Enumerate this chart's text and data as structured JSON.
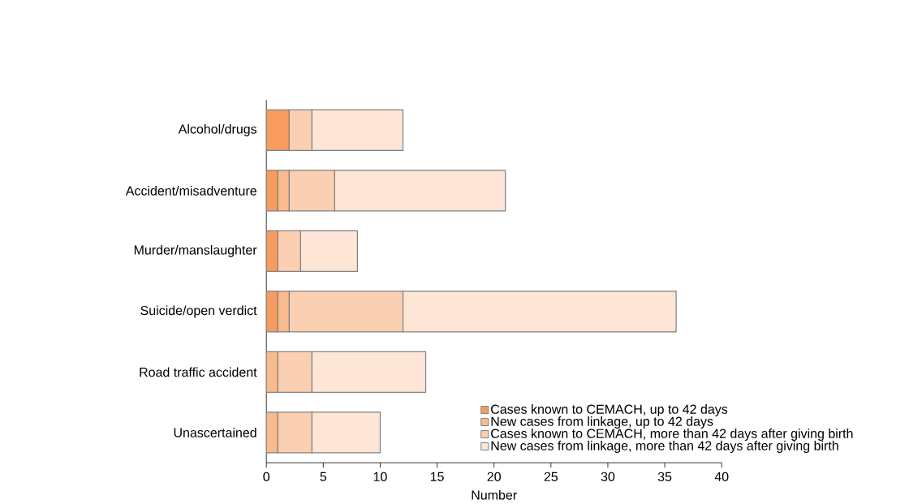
{
  "chart_data": {
    "type": "bar",
    "orientation": "horizontal",
    "stacked": true,
    "categories": [
      "Alcohol/drugs",
      "Accident/misadventure",
      "Murder/manslaughter",
      "Suicide/open verdict",
      "Road traffic accident",
      "Unascertained"
    ],
    "series": [
      {
        "name": "Cases known to CEMACH, up to 42 days",
        "color": "#f79b5e",
        "values": [
          2,
          1,
          1,
          1,
          0,
          0
        ]
      },
      {
        "name": "New cases from linkage, up to 42 days",
        "color": "#f9bb8e",
        "values": [
          0,
          1,
          0,
          1,
          1,
          1
        ]
      },
      {
        "name": "Cases known to CEMACH, more than 42 days after giving birth",
        "color": "#fbd0b2",
        "values": [
          2,
          4,
          2,
          10,
          3,
          3
        ]
      },
      {
        "name": "New cases from linkage, more than 42 days after giving birth",
        "color": "#fde6d6",
        "values": [
          8,
          15,
          5,
          24,
          10,
          6
        ]
      }
    ],
    "xlim": [
      0,
      40
    ],
    "xticks": [
      0,
      5,
      10,
      15,
      20,
      25,
      30,
      35,
      40
    ],
    "xlabel": "Number",
    "legend": "bottom right"
  }
}
